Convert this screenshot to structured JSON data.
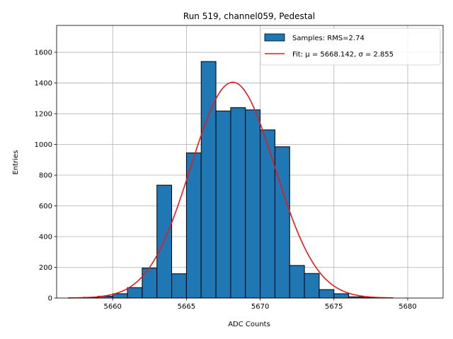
{
  "chart_data": {
    "type": "bar",
    "title": "Run 519, channel059, Pedestal",
    "xlabel": "ADC Counts",
    "ylabel": "Entries",
    "xlim": [
      5656.2,
      5682.4
    ],
    "ylim": [
      0,
      1775
    ],
    "x_ticks": [
      5660,
      5665,
      5670,
      5675,
      5680
    ],
    "y_ticks": [
      0,
      200,
      400,
      600,
      800,
      1000,
      1200,
      1400,
      1600
    ],
    "grid": true,
    "legend_position": "top-right",
    "bar_color": "#1f77b4",
    "fit_color": "#e41a1c",
    "histogram": {
      "name": "Samples: RMS=2.74",
      "bin_width": 1,
      "bin_left_edges": [
        5657,
        5658,
        5659,
        5660,
        5661,
        5662,
        5663,
        5664,
        5665,
        5666,
        5667,
        5668,
        5669,
        5670,
        5671,
        5672,
        5673,
        5674,
        5675,
        5676,
        5677,
        5678
      ],
      "counts": [
        2,
        5,
        12,
        28,
        68,
        195,
        735,
        158,
        945,
        1540,
        1218,
        1240,
        1225,
        1095,
        985,
        212,
        160,
        55,
        28,
        8,
        3,
        1
      ]
    },
    "fit": {
      "name": "Fit: μ = 5668.142, σ = 2.855",
      "mu": 5668.142,
      "sigma": 2.855,
      "amplitude": 1405,
      "x_range": [
        5657.0,
        5679.0
      ]
    }
  }
}
